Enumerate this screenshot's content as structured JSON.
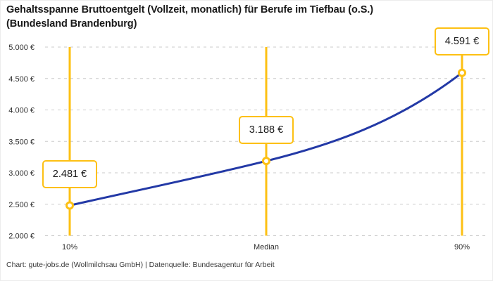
{
  "title": {
    "line1": "Gehaltsspanne Bruttoentgelt (Vollzeit, monatlich) für Berufe im Tiefbau (o.S.)",
    "line2": "(Bundesland Brandenburg)"
  },
  "footer": {
    "credit": "Chart: gute-jobs.de (Wollmilchsau GmbH) | Datenquelle: Bundesagentur für Arbeit"
  },
  "chart_data": {
    "type": "line",
    "title": "Gehaltsspanne Bruttoentgelt (Vollzeit, monatlich) für Berufe im Tiefbau (o.S.) (Bundesland Brandenburg)",
    "categories": [
      "10%",
      "Median",
      "90%"
    ],
    "values": [
      2481,
      3188,
      4591
    ],
    "value_labels": [
      "2.481 €",
      "3.188 €",
      "4.591 €"
    ],
    "ylim": [
      2000,
      5000
    ],
    "ytick_step": 500,
    "ytick_labels": [
      "2.000 €",
      "2.500 €",
      "3.000 €",
      "3.500 €",
      "4.000 €",
      "4.500 €",
      "5.000 €"
    ],
    "grid": "dashed-horizontal",
    "legend": "none",
    "colors": {
      "series_line": "#2339a6",
      "marker_accent": "#fdc013",
      "gridline": "#cbcbcb",
      "axis_text": "#2f2f2f",
      "title_text": "#191919",
      "label_box_bg": "#ffffff"
    }
  }
}
